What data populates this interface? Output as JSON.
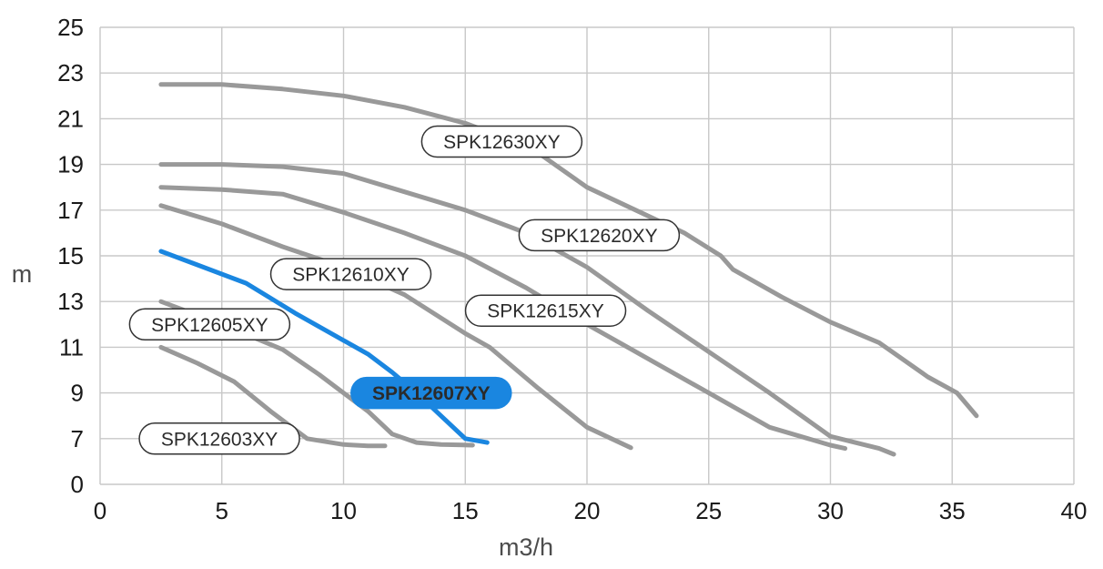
{
  "chart_data": {
    "type": "line",
    "title": "",
    "xlabel": "m3/h",
    "ylabel": "m",
    "xlim": [
      0,
      40
    ],
    "x_ticks": [
      0,
      5,
      10,
      15,
      20,
      25,
      30,
      35,
      40
    ],
    "y_tick_labels": [
      "0",
      "7",
      "9",
      "11",
      "13",
      "15",
      "17",
      "19",
      "21",
      "23",
      "25"
    ],
    "y_axis_note": "nonlinear axis: bottom gridline labeled 0, then labels 7 through 25 in steps of 2",
    "grid": true,
    "legend": "none",
    "colors": {
      "grey_curve": "#999999",
      "highlight_curve": "#1a86e0",
      "grid": "#c8c8c8",
      "callout_border": "#333333",
      "highlight_fill": "#1a86e0"
    },
    "series": [
      {
        "name": "SPK12630XY",
        "highlight": false,
        "points": [
          [
            2.5,
            22.5
          ],
          [
            5,
            22.5
          ],
          [
            7.5,
            22.3
          ],
          [
            10,
            22.0
          ],
          [
            12.5,
            21.5
          ],
          [
            15,
            20.8
          ],
          [
            16.5,
            20.2
          ],
          [
            18,
            19.5
          ],
          [
            20,
            18.0
          ],
          [
            22,
            17.0
          ],
          [
            24,
            16.0
          ],
          [
            25.5,
            15.0
          ],
          [
            26,
            14.4
          ],
          [
            28,
            13.2
          ],
          [
            30,
            12.1
          ],
          [
            32,
            11.2
          ],
          [
            34,
            9.7
          ],
          [
            35.2,
            9.0
          ],
          [
            36,
            8.0
          ]
        ]
      },
      {
        "name": "SPK12620XY",
        "highlight": false,
        "points": [
          [
            2.5,
            19.0
          ],
          [
            5,
            19.0
          ],
          [
            7.5,
            18.9
          ],
          [
            10,
            18.6
          ],
          [
            12.5,
            17.8
          ],
          [
            15,
            17.0
          ],
          [
            17.5,
            16.0
          ],
          [
            20,
            14.5
          ],
          [
            22.5,
            12.6
          ],
          [
            25,
            10.8
          ],
          [
            27.5,
            9.0
          ],
          [
            30,
            7.1
          ],
          [
            32,
            5.5
          ],
          [
            32.6,
            4.6
          ]
        ]
      },
      {
        "name": "SPK12615XY",
        "highlight": false,
        "points": [
          [
            2.5,
            18.0
          ],
          [
            5,
            17.9
          ],
          [
            7.5,
            17.7
          ],
          [
            10,
            16.9
          ],
          [
            12.5,
            16.0
          ],
          [
            15,
            15.0
          ],
          [
            17.5,
            13.6
          ],
          [
            20,
            12.0
          ],
          [
            22.5,
            10.5
          ],
          [
            25,
            9.0
          ],
          [
            27.5,
            7.5
          ],
          [
            30,
            6.0
          ],
          [
            30.6,
            5.5
          ]
        ]
      },
      {
        "name": "SPK12610XY",
        "highlight": false,
        "points": [
          [
            2.5,
            17.2
          ],
          [
            5,
            16.4
          ],
          [
            7.5,
            15.4
          ],
          [
            10,
            14.5
          ],
          [
            12.5,
            13.3
          ],
          [
            15,
            11.6
          ],
          [
            16,
            11.0
          ],
          [
            18,
            9.2
          ],
          [
            20,
            7.5
          ],
          [
            21.8,
            5.6
          ]
        ]
      },
      {
        "name": "SPK12607XY",
        "highlight": true,
        "points": [
          [
            2.5,
            15.2
          ],
          [
            4,
            14.6
          ],
          [
            6,
            13.8
          ],
          [
            8,
            12.5
          ],
          [
            10,
            11.3
          ],
          [
            11,
            10.7
          ],
          [
            12,
            9.9
          ],
          [
            13,
            9.0
          ],
          [
            14,
            8.0
          ],
          [
            15,
            7.0
          ],
          [
            15.9,
            6.4
          ]
        ]
      },
      {
        "name": "SPK12605XY",
        "highlight": false,
        "points": [
          [
            2.5,
            13.0
          ],
          [
            5,
            12.0
          ],
          [
            7.5,
            10.9
          ],
          [
            9,
            9.8
          ],
          [
            10,
            9.0
          ],
          [
            11,
            8.2
          ],
          [
            12,
            7.2
          ],
          [
            13,
            6.4
          ],
          [
            14,
            6.1
          ],
          [
            15.3,
            6.0
          ]
        ]
      },
      {
        "name": "SPK12603XY",
        "highlight": false,
        "points": [
          [
            2.5,
            11.0
          ],
          [
            4,
            10.3
          ],
          [
            5.5,
            9.5
          ],
          [
            7,
            8.2
          ],
          [
            8.5,
            7.0
          ],
          [
            10,
            6.1
          ],
          [
            11,
            5.9
          ],
          [
            11.7,
            5.9
          ]
        ]
      }
    ],
    "annotations": [
      {
        "text": "SPK12630XY",
        "x": 16.5,
        "y": 20.0,
        "highlight": false
      },
      {
        "text": "SPK12620XY",
        "x": 20.5,
        "y": 15.9,
        "highlight": false
      },
      {
        "text": "SPK12610XY",
        "x": 10.3,
        "y": 14.2,
        "highlight": false
      },
      {
        "text": "SPK12615XY",
        "x": 18.3,
        "y": 12.6,
        "highlight": false
      },
      {
        "text": "SPK12605XY",
        "x": 4.5,
        "y": 12.0,
        "highlight": false
      },
      {
        "text": "SPK12607XY",
        "x": 13.6,
        "y": 9.0,
        "highlight": true
      },
      {
        "text": "SPK12603XY",
        "x": 4.9,
        "y": 7.0,
        "highlight": false
      }
    ]
  }
}
